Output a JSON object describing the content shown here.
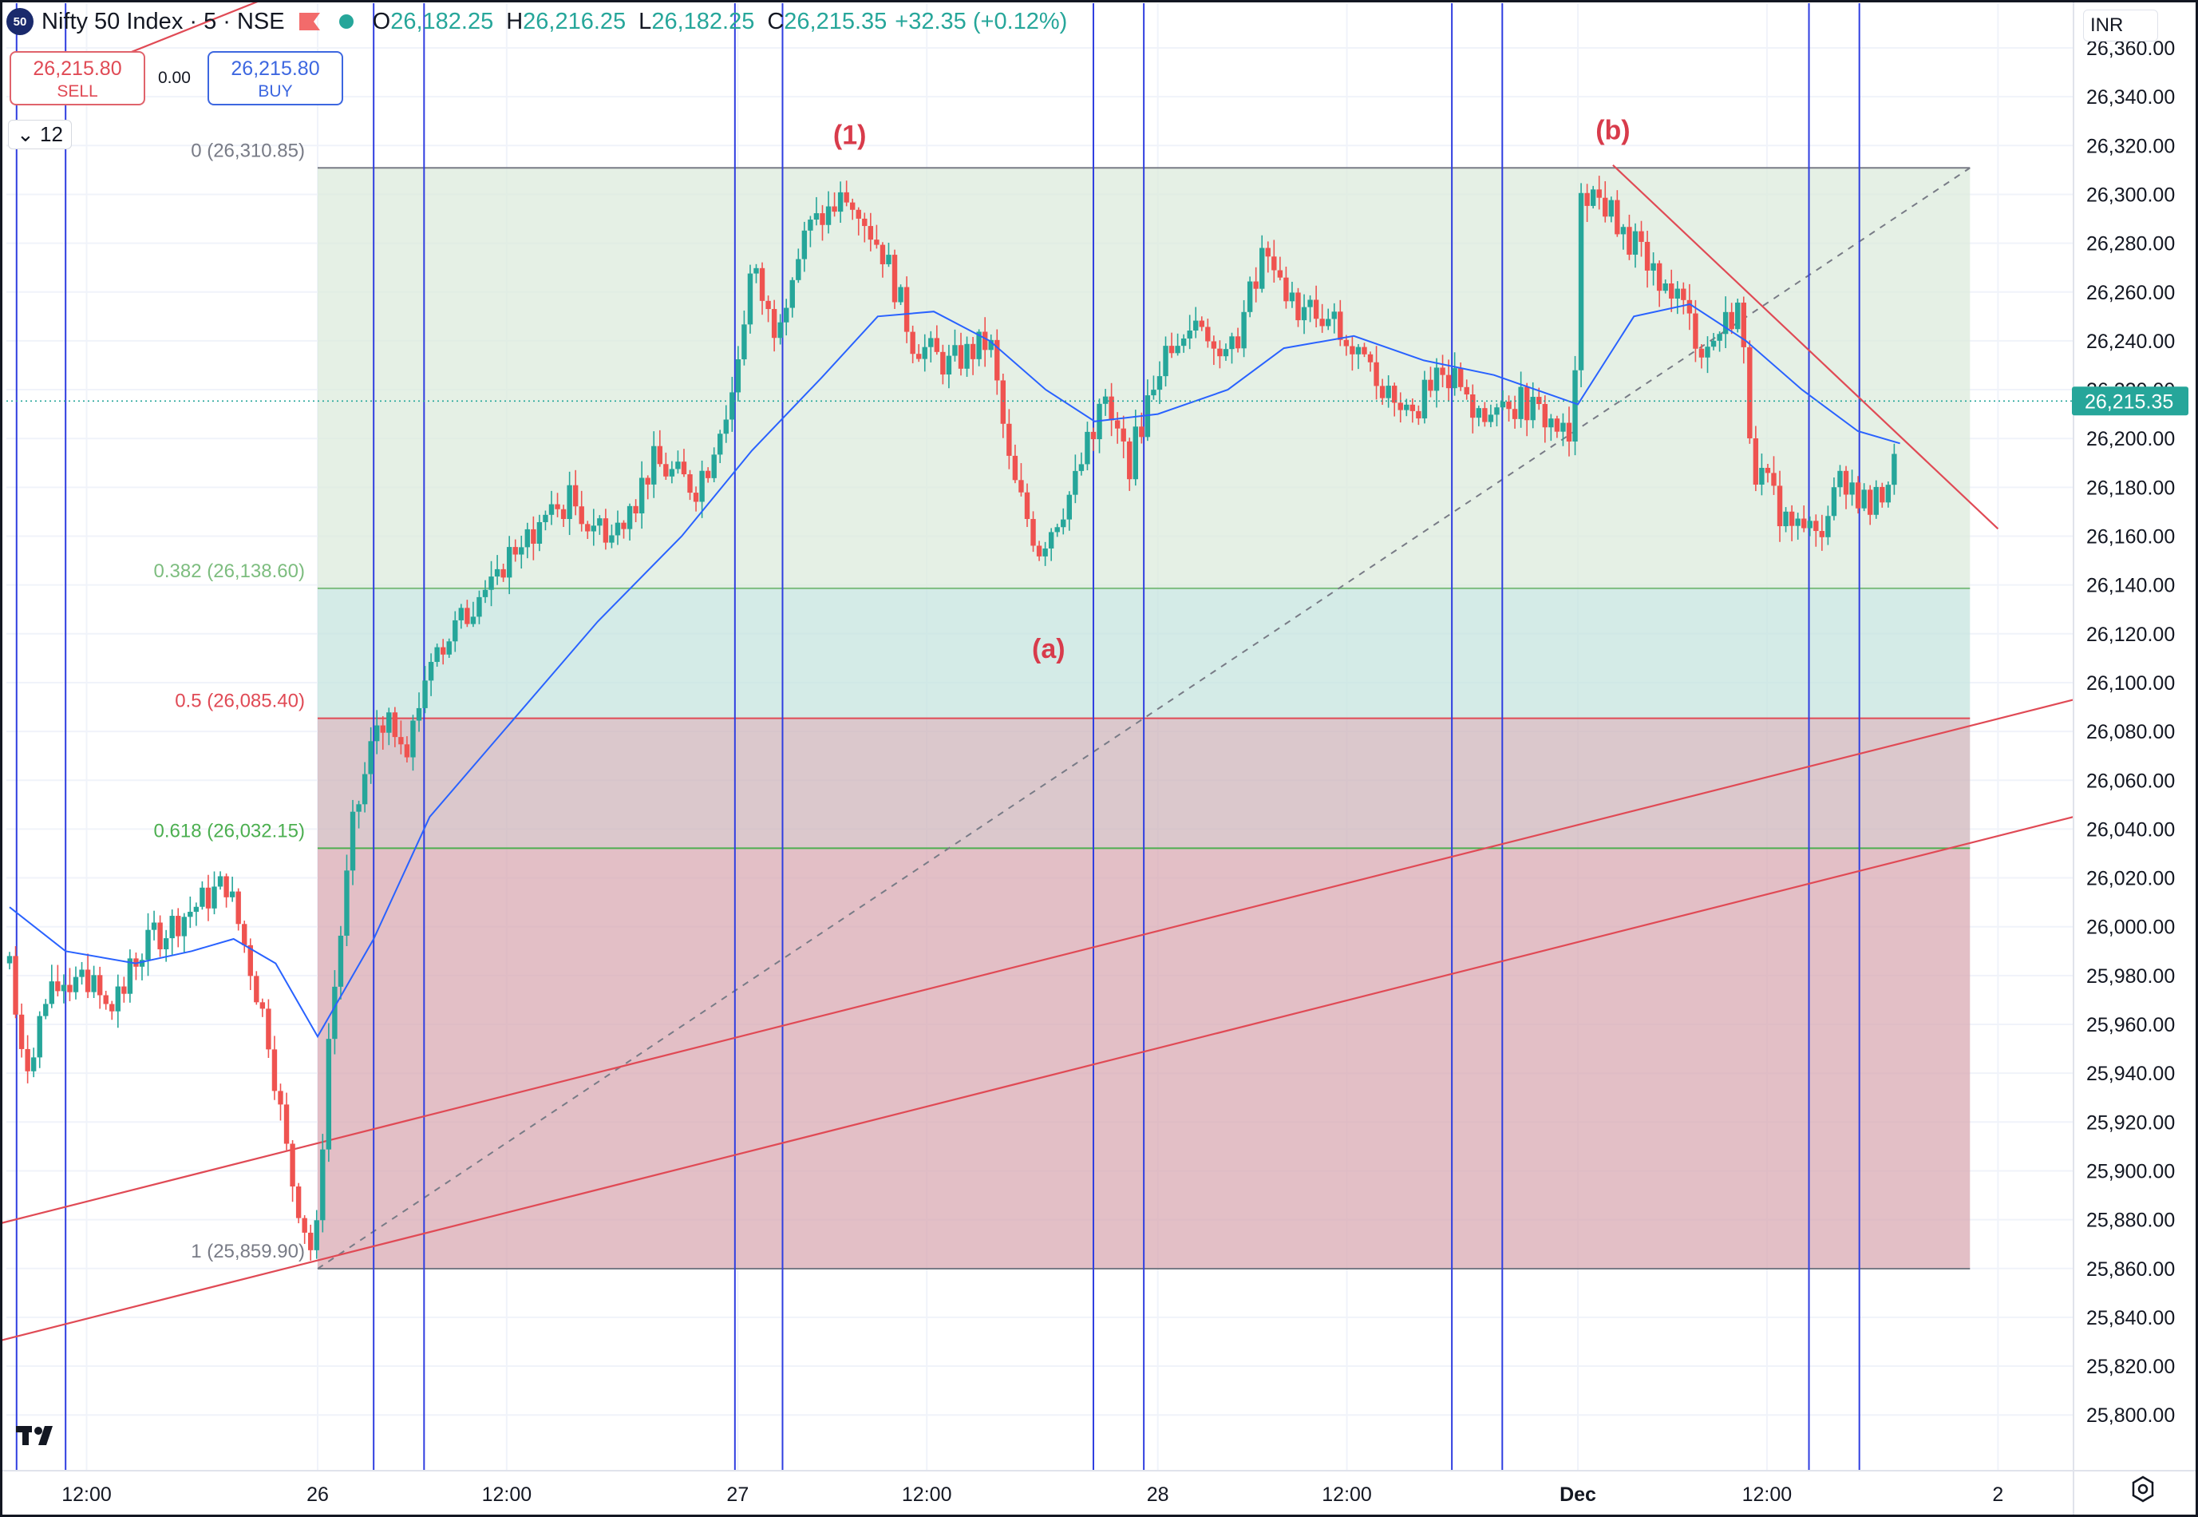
{
  "header": {
    "logo_text": "50",
    "symbol": "Nifty 50 Index · 5 · NSE",
    "ohlc": [
      {
        "key": "O",
        "value": "26,182.25"
      },
      {
        "key": "H",
        "value": "26,216.25"
      },
      {
        "key": "L",
        "value": "26,182.25"
      },
      {
        "key": "C",
        "value": "26,215.35"
      }
    ],
    "change": "+32.35 (+0.12%)"
  },
  "trade": {
    "sell_price": "26,215.80",
    "sell_label": "SELL",
    "spread": "0.00",
    "buy_price": "26,215.80",
    "buy_label": "BUY"
  },
  "interval_badge": "12",
  "currency": "INR",
  "colors": {
    "up": "#26a69a",
    "down": "#ef5350",
    "ma": "#2962ff",
    "vline": "#2f3ee0",
    "trend": "#e04a55",
    "fib_green": "#7dbd7f",
    "fib_teal": "#97cdc5",
    "fib_red_line": "#e04a55",
    "fib_zone_red": "#c96d7a",
    "label_red": "#d83b4b"
  },
  "chart_data": {
    "type": "candlestick",
    "title": "Nifty 50 Index · 5 · NSE",
    "ylim": [
      25785,
      26375
    ],
    "xlim": [
      0,
      1474
    ],
    "y_ticks": [
      "26,360.00",
      "26,340.00",
      "26,320.00",
      "26,300.00",
      "26,280.00",
      "26,260.00",
      "26,240.00",
      "26,220.00",
      "26,200.00",
      "26,180.00",
      "26,160.00",
      "26,140.00",
      "26,120.00",
      "26,100.00",
      "26,080.00",
      "26,060.00",
      "26,040.00",
      "26,020.00",
      "26,000.00",
      "25,980.00",
      "25,960.00",
      "25,940.00",
      "25,920.00",
      "25,900.00",
      "25,880.00",
      "25,860.00",
      "25,840.00",
      "25,820.00",
      "25,800.00"
    ],
    "x_ticks": [
      {
        "label": "12:00",
        "t": 55
      },
      {
        "label": "26",
        "t": 220
      },
      {
        "label": "12:00",
        "t": 355
      },
      {
        "label": "27",
        "t": 520
      },
      {
        "label": "12:00",
        "t": 655
      },
      {
        "label": "28",
        "t": 820
      },
      {
        "label": "12:00",
        "t": 955
      },
      {
        "label": "Dec",
        "t": 1120
      },
      {
        "label": "12:00",
        "t": 1255
      },
      {
        "label": "2",
        "t": 1420
      }
    ],
    "last_price": {
      "value": 26215.35,
      "label": "26,215.35"
    },
    "anchors": [
      {
        "t": 0,
        "price": 25985
      },
      {
        "t": 10,
        "price": 25938
      },
      {
        "t": 25,
        "price": 25968
      },
      {
        "t": 50,
        "price": 25985
      },
      {
        "t": 70,
        "price": 25965
      },
      {
        "t": 95,
        "price": 25992
      },
      {
        "t": 125,
        "price": 26005
      },
      {
        "t": 155,
        "price": 26018
      },
      {
        "t": 170,
        "price": 25988
      },
      {
        "t": 185,
        "price": 25955
      },
      {
        "t": 200,
        "price": 25900
      },
      {
        "t": 218,
        "price": 25862
      },
      {
        "t": 228,
        "price": 25955
      },
      {
        "t": 245,
        "price": 26040
      },
      {
        "t": 265,
        "price": 26090
      },
      {
        "t": 285,
        "price": 26075
      },
      {
        "t": 300,
        "price": 26110
      },
      {
        "t": 330,
        "price": 26130
      },
      {
        "t": 360,
        "price": 26155
      },
      {
        "t": 400,
        "price": 26175
      },
      {
        "t": 430,
        "price": 26160
      },
      {
        "t": 460,
        "price": 26190
      },
      {
        "t": 490,
        "price": 26180
      },
      {
        "t": 515,
        "price": 26215
      },
      {
        "t": 530,
        "price": 26270
      },
      {
        "t": 545,
        "price": 26245
      },
      {
        "t": 570,
        "price": 26285
      },
      {
        "t": 600,
        "price": 26300
      },
      {
        "t": 625,
        "price": 26275
      },
      {
        "t": 645,
        "price": 26240
      },
      {
        "t": 670,
        "price": 26230
      },
      {
        "t": 700,
        "price": 26240
      },
      {
        "t": 715,
        "price": 26185
      },
      {
        "t": 735,
        "price": 26155
      },
      {
        "t": 760,
        "price": 26180
      },
      {
        "t": 780,
        "price": 26215
      },
      {
        "t": 800,
        "price": 26190
      },
      {
        "t": 820,
        "price": 26230
      },
      {
        "t": 850,
        "price": 26250
      },
      {
        "t": 870,
        "price": 26230
      },
      {
        "t": 895,
        "price": 26275
      },
      {
        "t": 915,
        "price": 26255
      },
      {
        "t": 945,
        "price": 26245
      },
      {
        "t": 975,
        "price": 26225
      },
      {
        "t": 1000,
        "price": 26212
      },
      {
        "t": 1030,
        "price": 26228
      },
      {
        "t": 1050,
        "price": 26205
      },
      {
        "t": 1080,
        "price": 26215
      },
      {
        "t": 1105,
        "price": 26205
      },
      {
        "t": 1117,
        "price": 26195
      },
      {
        "t": 1121,
        "price": 26305
      },
      {
        "t": 1140,
        "price": 26295
      },
      {
        "t": 1165,
        "price": 26275
      },
      {
        "t": 1190,
        "price": 26260
      },
      {
        "t": 1210,
        "price": 26235
      },
      {
        "t": 1235,
        "price": 26255
      },
      {
        "t": 1245,
        "price": 26190
      },
      {
        "t": 1270,
        "price": 26165
      },
      {
        "t": 1290,
        "price": 26158
      },
      {
        "t": 1310,
        "price": 26185
      },
      {
        "t": 1330,
        "price": 26170
      },
      {
        "t": 1347,
        "price": 26190
      },
      {
        "t": 1350,
        "price": 26215
      }
    ],
    "moving_average": [
      {
        "t": 0,
        "price": 26008
      },
      {
        "t": 40,
        "price": 25990
      },
      {
        "t": 90,
        "price": 25985
      },
      {
        "t": 130,
        "price": 25990
      },
      {
        "t": 160,
        "price": 25995
      },
      {
        "t": 190,
        "price": 25985
      },
      {
        "t": 220,
        "price": 25955
      },
      {
        "t": 260,
        "price": 25995
      },
      {
        "t": 300,
        "price": 26045
      },
      {
        "t": 360,
        "price": 26085
      },
      {
        "t": 420,
        "price": 26125
      },
      {
        "t": 480,
        "price": 26160
      },
      {
        "t": 530,
        "price": 26195
      },
      {
        "t": 580,
        "price": 26225
      },
      {
        "t": 620,
        "price": 26250
      },
      {
        "t": 660,
        "price": 26252
      },
      {
        "t": 700,
        "price": 26240
      },
      {
        "t": 740,
        "price": 26220
      },
      {
        "t": 775,
        "price": 26207
      },
      {
        "t": 820,
        "price": 26210
      },
      {
        "t": 870,
        "price": 26220
      },
      {
        "t": 910,
        "price": 26237
      },
      {
        "t": 960,
        "price": 26242
      },
      {
        "t": 1010,
        "price": 26232
      },
      {
        "t": 1060,
        "price": 26226
      },
      {
        "t": 1100,
        "price": 26218
      },
      {
        "t": 1120,
        "price": 26214
      },
      {
        "t": 1160,
        "price": 26250
      },
      {
        "t": 1200,
        "price": 26255
      },
      {
        "t": 1240,
        "price": 26240
      },
      {
        "t": 1280,
        "price": 26220
      },
      {
        "t": 1320,
        "price": 26203
      },
      {
        "t": 1350,
        "price": 26198
      }
    ],
    "fib_retracement": {
      "t_start": 220,
      "t_end": 1400,
      "levels": [
        {
          "ratio": "0",
          "price": 26310.85,
          "label": "0 (26,310.85)"
        },
        {
          "ratio": "0.382",
          "price": 26138.6,
          "label": "0.382 (26,138.60)"
        },
        {
          "ratio": "0.5",
          "price": 26085.4,
          "label": "0.5 (26,085.40)"
        },
        {
          "ratio": "0.618",
          "price": 26032.15,
          "label": "0.618 (26,032.15)"
        },
        {
          "ratio": "1",
          "price": 25859.9,
          "label": "1 (25,859.90)"
        }
      ]
    },
    "vertical_lines_t": [
      5,
      40,
      260,
      296,
      518,
      552,
      774,
      810,
      1030,
      1066,
      1285,
      1321
    ],
    "trend_lines": [
      {
        "kind": "rising",
        "from": {
          "t": -10,
          "price": 25830
        },
        "to": {
          "t": 1474,
          "price": 26045
        }
      },
      {
        "kind": "rising",
        "from": {
          "t": -10,
          "price": 25878
        },
        "to": {
          "t": 1474,
          "price": 26093
        }
      },
      {
        "kind": "falling",
        "from": {
          "t": 1145,
          "price": 26312
        },
        "to": {
          "t": 1420,
          "price": 26163
        }
      },
      {
        "kind": "top-left",
        "from": {
          "t": 20,
          "price": 26343
        },
        "to": {
          "t": 400,
          "price": 26430
        }
      }
    ],
    "dashed_diagonal": {
      "from": {
        "t": 220,
        "price": 25859.9
      },
      "to": {
        "t": 1400,
        "price": 26310.85
      }
    },
    "wave_labels": [
      {
        "text": "(1)",
        "t": 600,
        "price": 26318,
        "position": "above"
      },
      {
        "text": "(a)",
        "t": 742,
        "price": 26120,
        "position": "below"
      },
      {
        "text": "(b)",
        "t": 1145,
        "price": 26320,
        "position": "above"
      }
    ]
  }
}
